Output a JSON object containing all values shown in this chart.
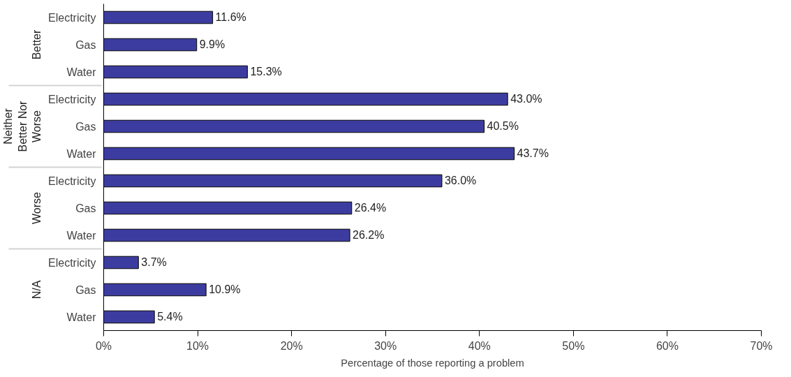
{
  "chart_data": {
    "type": "bar",
    "orientation": "horizontal",
    "xlabel": "Percentage of those reporting a problem",
    "categories": [
      "Electricity",
      "Gas",
      "Water",
      "Electricity",
      "Gas",
      "Water",
      "Electricity",
      "Gas",
      "Water",
      "Electricity",
      "Gas",
      "Water"
    ],
    "annotations": [
      "Better",
      "Neither Better Nor Worse",
      "Worse",
      "N/A"
    ],
    "values": [
      11.6,
      9.9,
      15.3,
      43.0,
      40.5,
      43.7,
      36.0,
      26.4,
      26.2,
      3.7,
      10.9,
      5.4
    ],
    "value_labels": [
      "11.6%",
      "9.9%",
      "15.3%",
      "43.0%",
      "40.5%",
      "43.7%",
      "36.0%",
      "26.4%",
      "26.2%",
      "3.7%",
      "10.9%",
      "5.4%"
    ],
    "color": "#3c3ca0",
    "xlim": [
      0,
      70
    ],
    "xticks": [
      {
        "value": 0,
        "label": "0%"
      },
      {
        "value": 10,
        "label": "10%"
      },
      {
        "value": 20,
        "label": "20%"
      },
      {
        "value": 30,
        "label": "30%"
      },
      {
        "value": 40,
        "label": "40%"
      },
      {
        "value": 50,
        "label": "50%"
      },
      {
        "value": 60,
        "label": "60%"
      },
      {
        "value": 70,
        "label": "70%"
      }
    ],
    "grid": false
  }
}
